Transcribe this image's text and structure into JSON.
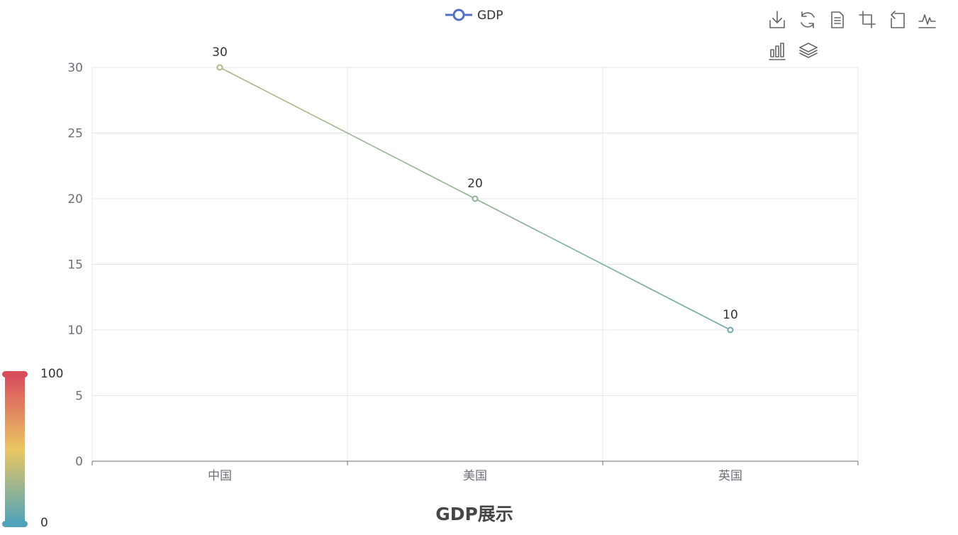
{
  "chart_data": {
    "type": "line",
    "title": "GDP展示",
    "categories": [
      "中国",
      "美国",
      "英国"
    ],
    "series": [
      {
        "name": "GDP",
        "values": [
          30,
          20,
          10
        ]
      }
    ],
    "ylim": [
      0,
      30
    ],
    "yticks": [
      0,
      5,
      10,
      15,
      20,
      25,
      30
    ],
    "xlabel": "",
    "ylabel": "",
    "grid": true,
    "legend": "top-center",
    "show_data_labels": true,
    "visual_map": {
      "min": 0,
      "max": 100,
      "min_label": "0",
      "max_label": "100",
      "colors": [
        "#50a3ba",
        "#eac763",
        "#d94e5d"
      ],
      "placement": "bottom-left"
    },
    "toolbox": [
      "save-as-image",
      "restore",
      "data-view",
      "zoom",
      "zoom-back",
      "line-type",
      "bar-type",
      "stack"
    ],
    "colors": {
      "legend_color": "#5470c6",
      "grid_line": "#e0e6f1",
      "axis_line": "#6e7079"
    }
  }
}
